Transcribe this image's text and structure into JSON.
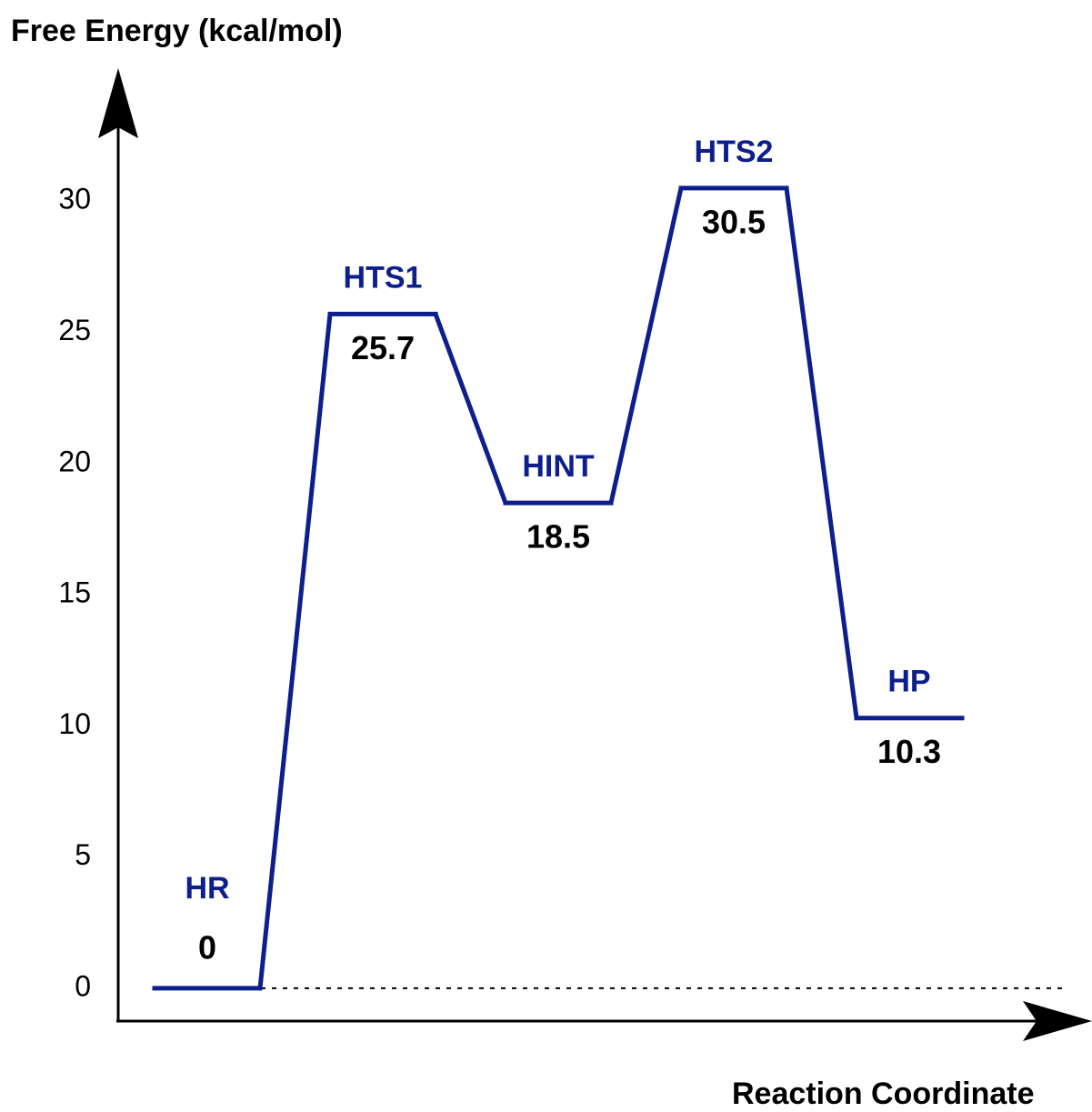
{
  "chart_data": {
    "type": "energy-profile",
    "y_label": "Free Energy (kcal/mol)",
    "x_label": "Reaction Coordinate",
    "categories": [
      "HR",
      "HTS1",
      "HINT",
      "HTS2",
      "HP"
    ],
    "values": [
      0,
      25.7,
      18.5,
      30.5,
      10.3
    ],
    "color": "#0c1f8c",
    "ylim": [
      -1.25,
      35
    ],
    "yticks": [
      0,
      5,
      10,
      15,
      20,
      25,
      30
    ]
  }
}
